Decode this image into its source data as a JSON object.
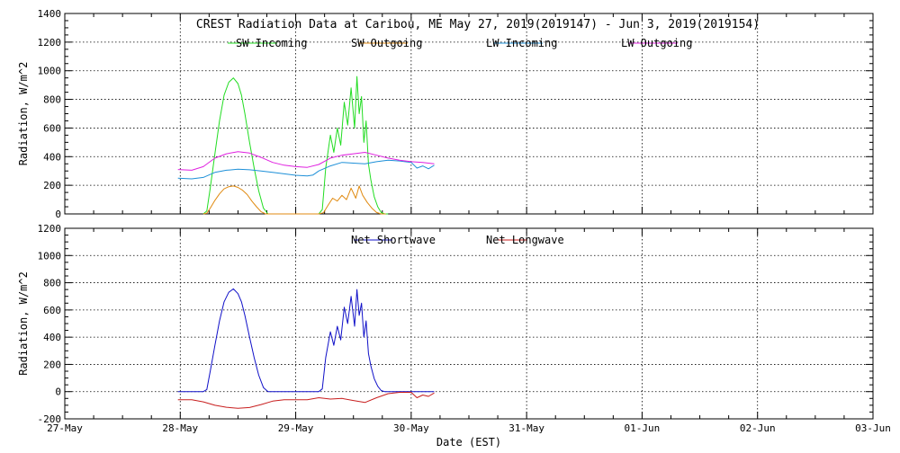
{
  "colors": {
    "sw_in": "#22dd22",
    "sw_out": "#e08a10",
    "lw_in": "#1e90d8",
    "lw_out": "#e020e0",
    "net_sw": "#1010c8",
    "net_lw": "#c81e1e"
  },
  "chart_data": [
    {
      "type": "line",
      "title": "CREST Radiation Data at Caribou, ME   May 27, 2019(2019147) - Jun  3, 2019(2019154)",
      "ylabel": "Radiation, W/m^2",
      "xlabel": "",
      "ylim": [
        0,
        1400
      ],
      "yticks": [
        0,
        200,
        400,
        600,
        800,
        1000,
        1200,
        1400
      ],
      "xlim": [
        0,
        7
      ],
      "xticks": [
        0,
        1,
        2,
        3,
        4,
        5,
        6,
        7
      ],
      "grid": true,
      "legend_position": "top-center",
      "series": [
        {
          "name": "SW Incoming",
          "color": "#22dd22",
          "x": [
            1.2,
            1.23,
            1.26,
            1.3,
            1.34,
            1.38,
            1.42,
            1.46,
            1.5,
            1.53,
            1.56,
            1.6,
            1.64,
            1.68,
            1.72,
            1.76,
            1.8,
            2.2,
            2.23,
            2.26,
            2.3,
            2.33,
            2.36,
            2.39,
            2.42,
            2.45,
            2.48,
            2.51,
            2.53,
            2.55,
            2.57,
            2.59,
            2.61,
            2.63,
            2.65,
            2.68,
            2.71,
            2.74,
            2.77,
            2.8
          ],
          "values": [
            0,
            20,
            180,
            420,
            650,
            830,
            920,
            950,
            910,
            830,
            700,
            500,
            320,
            160,
            40,
            0,
            0,
            0,
            30,
            320,
            550,
            430,
            600,
            480,
            780,
            620,
            880,
            600,
            960,
            700,
            820,
            500,
            650,
            350,
            240,
            120,
            50,
            10,
            0,
            0
          ]
        },
        {
          "name": "SW Outgoing",
          "color": "#e08a10",
          "x": [
            1.2,
            1.23,
            1.26,
            1.3,
            1.34,
            1.38,
            1.42,
            1.46,
            1.5,
            1.54,
            1.58,
            1.62,
            1.66,
            1.7,
            1.74,
            1.78,
            1.8,
            2.2,
            2.24,
            2.28,
            2.32,
            2.36,
            2.4,
            2.44,
            2.48,
            2.52,
            2.55,
            2.58,
            2.62,
            2.66,
            2.7,
            2.74,
            2.78
          ],
          "values": [
            0,
            5,
            40,
            95,
            140,
            175,
            190,
            195,
            185,
            165,
            135,
            90,
            50,
            15,
            0,
            0,
            0,
            0,
            8,
            60,
            110,
            90,
            130,
            100,
            180,
            110,
            195,
            130,
            80,
            40,
            10,
            0,
            0
          ]
        },
        {
          "name": "LW Incoming",
          "color": "#1e90d8",
          "x": [
            0.98,
            1.1,
            1.2,
            1.3,
            1.4,
            1.5,
            1.6,
            1.7,
            1.8,
            1.9,
            2.0,
            2.1,
            2.15,
            2.2,
            2.3,
            2.4,
            2.5,
            2.6,
            2.7,
            2.8,
            2.9,
            3.0,
            3.05,
            3.1,
            3.15,
            3.2
          ],
          "values": [
            250,
            245,
            255,
            290,
            305,
            312,
            308,
            300,
            290,
            280,
            270,
            265,
            272,
            300,
            335,
            360,
            355,
            350,
            365,
            375,
            370,
            360,
            320,
            335,
            315,
            340
          ]
        },
        {
          "name": "LW Outgoing",
          "color": "#e020e0",
          "x": [
            0.98,
            1.1,
            1.2,
            1.3,
            1.4,
            1.5,
            1.6,
            1.7,
            1.8,
            1.9,
            2.0,
            2.1,
            2.2,
            2.3,
            2.4,
            2.5,
            2.6,
            2.7,
            2.8,
            2.9,
            3.0,
            3.1,
            3.2
          ],
          "values": [
            310,
            305,
            330,
            390,
            420,
            435,
            425,
            395,
            360,
            340,
            330,
            325,
            345,
            390,
            410,
            420,
            430,
            410,
            390,
            375,
            365,
            360,
            350
          ]
        }
      ]
    },
    {
      "type": "line",
      "title": "",
      "ylabel": "Radiation, W/m^2",
      "xlabel": "Date (EST)",
      "ylim": [
        -200,
        1200
      ],
      "yticks": [
        -200,
        0,
        200,
        400,
        600,
        800,
        1000,
        1200
      ],
      "xlim": [
        0,
        7
      ],
      "xticks": [
        0,
        1,
        2,
        3,
        4,
        5,
        6,
        7
      ],
      "xtick_labels": [
        "27-May",
        "28-May",
        "29-May",
        "30-May",
        "31-May",
        "01-Jun",
        "02-Jun",
        "03-Jun"
      ],
      "grid": true,
      "legend_position": "top-center",
      "series": [
        {
          "name": "Net Shortwave",
          "color": "#1010c8",
          "x": [
            0.98,
            1.2,
            1.23,
            1.26,
            1.3,
            1.34,
            1.38,
            1.42,
            1.46,
            1.5,
            1.53,
            1.56,
            1.6,
            1.64,
            1.68,
            1.72,
            1.76,
            1.8,
            2.2,
            2.23,
            2.26,
            2.3,
            2.33,
            2.36,
            2.39,
            2.42,
            2.45,
            2.48,
            2.51,
            2.53,
            2.55,
            2.57,
            2.59,
            2.61,
            2.63,
            2.65,
            2.68,
            2.71,
            2.74,
            2.77,
            2.8,
            3.0,
            3.2
          ],
          "values": [
            0,
            0,
            15,
            150,
            340,
            520,
            660,
            730,
            755,
            720,
            660,
            560,
            400,
            250,
            120,
            30,
            0,
            0,
            0,
            20,
            250,
            440,
            340,
            480,
            380,
            620,
            500,
            700,
            480,
            750,
            560,
            650,
            400,
            520,
            280,
            190,
            95,
            40,
            8,
            0,
            0,
            0,
            0
          ]
        },
        {
          "name": "Net Longwave",
          "color": "#c81e1e",
          "x": [
            0.98,
            1.1,
            1.2,
            1.3,
            1.4,
            1.5,
            1.6,
            1.7,
            1.8,
            1.9,
            2.0,
            2.1,
            2.2,
            2.3,
            2.4,
            2.5,
            2.6,
            2.7,
            2.8,
            2.9,
            3.0,
            3.05,
            3.1,
            3.15,
            3.2
          ],
          "values": [
            -60,
            -60,
            -75,
            -100,
            -115,
            -123,
            -117,
            -95,
            -70,
            -60,
            -60,
            -60,
            -45,
            -55,
            -50,
            -65,
            -80,
            -45,
            -15,
            -5,
            -5,
            -45,
            -25,
            -35,
            -10
          ]
        }
      ]
    }
  ]
}
